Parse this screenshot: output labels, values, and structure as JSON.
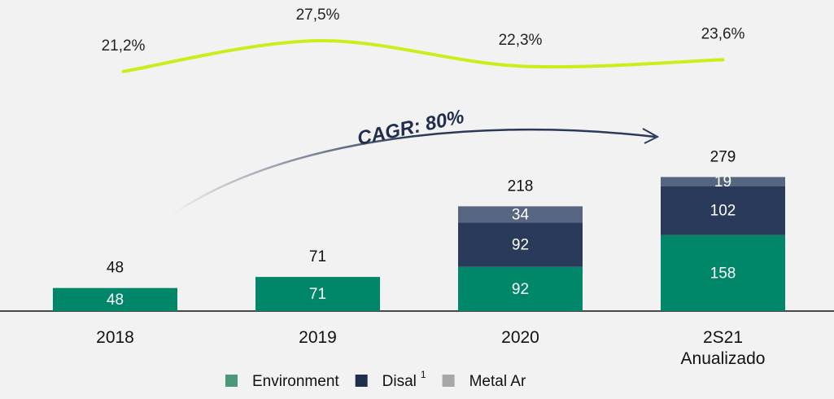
{
  "chart_data": {
    "type": "bar",
    "stacked": true,
    "categories": [
      "2018",
      "2019",
      "2020",
      "2S21\nAnualizado"
    ],
    "series": [
      {
        "name": "Environment",
        "color": "#00876a",
        "legend_color": "#4a9a7a",
        "values": [
          48,
          71,
          92,
          158
        ]
      },
      {
        "name": "Disal",
        "superscript": "1",
        "color": "#2a3a5a",
        "legend_color": "#1f2e4d",
        "values": [
          null,
          null,
          92,
          102
        ]
      },
      {
        "name": "Metal Ar",
        "color": "#566580",
        "legend_color": "#a8a8a8",
        "values": [
          null,
          null,
          34,
          19
        ]
      }
    ],
    "totals": [
      48,
      71,
      218,
      279
    ],
    "ylim": [
      0,
      300
    ],
    "margins": [
      21.2,
      27.5,
      22.3,
      23.6
    ],
    "margin_labels": [
      "21,2%",
      "27,5%",
      "22,3%",
      "23,6%"
    ],
    "margin_lim": [
      20,
      30
    ],
    "margin_color": "#c8ef1a",
    "annotation": "CAGR: 80%"
  }
}
